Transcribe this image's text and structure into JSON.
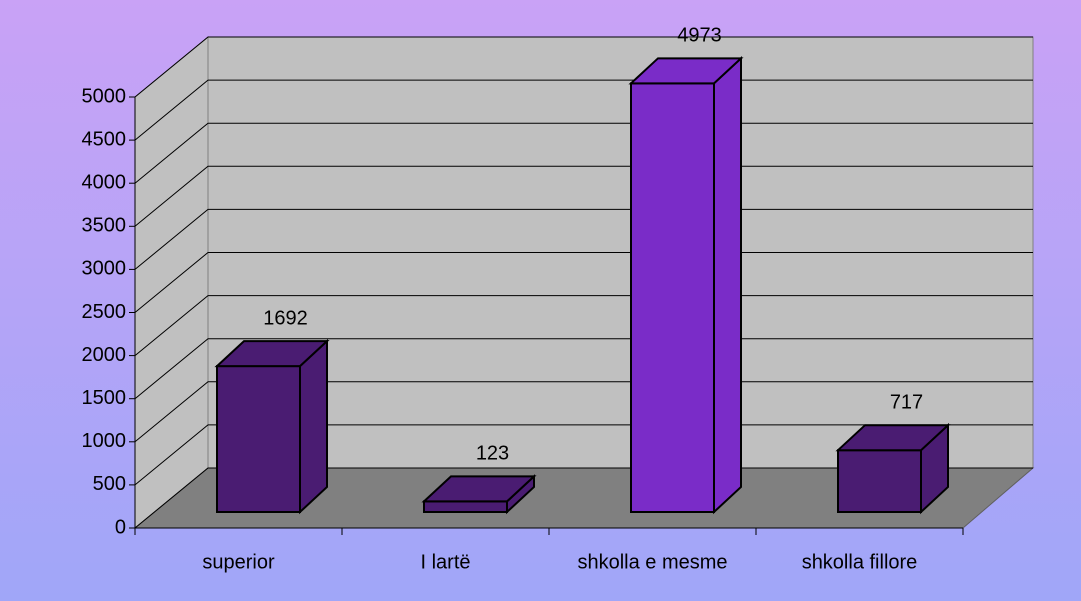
{
  "chart_data": {
    "type": "bar3d",
    "categories": [
      "superior",
      "I lartë",
      "shkolla e mesme",
      "shkolla fillore"
    ],
    "values": [
      1692,
      123,
      4973,
      717
    ],
    "colors": [
      "#4a1c72",
      "#4a1c72",
      "#7a2cc8",
      "#4a1c72"
    ],
    "ylim": [
      0,
      5000
    ],
    "yticks": [
      0,
      500,
      1000,
      1500,
      2000,
      2500,
      3000,
      3500,
      4000,
      4500,
      5000
    ],
    "grid": true
  }
}
